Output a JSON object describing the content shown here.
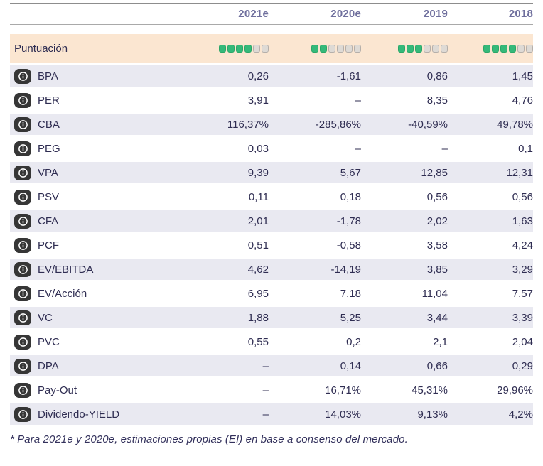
{
  "header": {
    "columns": [
      "2021e",
      "2020e",
      "2019",
      "2018"
    ]
  },
  "score_row": {
    "label": "Puntuación",
    "max_dots": 6,
    "scores": [
      4,
      2,
      3,
      4
    ]
  },
  "rows": [
    {
      "label": "BPA",
      "values": [
        "0,26",
        "-1,61",
        "0,86",
        "1,45"
      ]
    },
    {
      "label": "PER",
      "values": [
        "3,91",
        "–",
        "8,35",
        "4,76"
      ]
    },
    {
      "label": "CBA",
      "values": [
        "116,37%",
        "-285,86%",
        "-40,59%",
        "49,78%"
      ]
    },
    {
      "label": "PEG",
      "values": [
        "0,03",
        "–",
        "–",
        "0,1"
      ]
    },
    {
      "label": "VPA",
      "values": [
        "9,39",
        "5,67",
        "12,85",
        "12,31"
      ]
    },
    {
      "label": "PSV",
      "values": [
        "0,11",
        "0,18",
        "0,56",
        "0,56"
      ]
    },
    {
      "label": "CFA",
      "values": [
        "2,01",
        "-1,78",
        "2,02",
        "1,63"
      ]
    },
    {
      "label": "PCF",
      "values": [
        "0,51",
        "-0,58",
        "3,58",
        "4,24"
      ]
    },
    {
      "label": "EV/EBITDA",
      "values": [
        "4,62",
        "-14,19",
        "3,85",
        "3,29"
      ]
    },
    {
      "label": "EV/Acción",
      "values": [
        "6,95",
        "7,18",
        "11,04",
        "7,57"
      ]
    },
    {
      "label": "VC",
      "values": [
        "1,88",
        "5,25",
        "3,44",
        "3,39"
      ]
    },
    {
      "label": "PVC",
      "values": [
        "0,55",
        "0,2",
        "2,1",
        "2,04"
      ]
    },
    {
      "label": "DPA",
      "values": [
        "–",
        "0,14",
        "0,66",
        "0,29"
      ]
    },
    {
      "label": "Pay-Out",
      "values": [
        "–",
        "16,71%",
        "45,31%",
        "29,96%"
      ]
    },
    {
      "label": "Dividendo-YIELD",
      "values": [
        "–",
        "14,03%",
        "9,13%",
        "4,2%"
      ]
    }
  ],
  "footnote": "* Para 2021e y 2020e, estimaciones propias (EI) en base a consenso del mercado.",
  "icons": {
    "info": "info-icon"
  },
  "colors": {
    "score_row_bg": "#fbe6d1",
    "alt_row_bg": "#e9e9f1",
    "dot_on": "#34b97a",
    "dot_off": "#dedad5",
    "header_text": "#6f6f9d",
    "body_text": "#2f2d52",
    "info_icon_bg": "#363636"
  }
}
